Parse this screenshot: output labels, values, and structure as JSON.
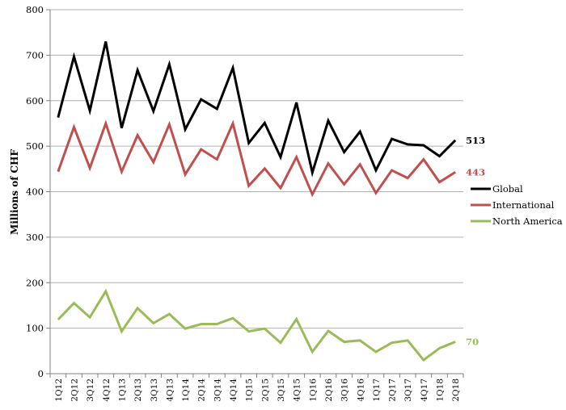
{
  "chart_data": {
    "type": "line",
    "title": "",
    "xlabel": "",
    "ylabel": "Millions of CHF",
    "ylim": [
      0,
      800
    ],
    "yticks": [
      0,
      100,
      200,
      300,
      400,
      500,
      600,
      700,
      800
    ],
    "grid": "horizontal",
    "legend_position": "right",
    "categories": [
      "1Q12",
      "2Q12",
      "3Q12",
      "4Q12",
      "1Q13",
      "2Q13",
      "3Q13",
      "4Q13",
      "1Q14",
      "2Q14",
      "3Q14",
      "4Q14",
      "1Q15",
      "2Q15",
      "3Q15",
      "4Q15",
      "1Q16",
      "2Q16",
      "3Q16",
      "4Q16",
      "1Q17",
      "2Q17",
      "3Q17",
      "4Q17",
      "1Q18",
      "2Q18"
    ],
    "series": [
      {
        "name": "Global",
        "color": "#000000",
        "values": [
          563,
          697,
          578,
          730,
          540,
          667,
          577,
          680,
          537,
          603,
          582,
          672,
          507,
          551,
          476,
          596,
          442,
          556,
          487,
          532,
          447,
          516,
          504,
          502,
          478,
          513
        ],
        "end_label": "513"
      },
      {
        "name": "International",
        "color": "#c0504d",
        "values": [
          444,
          542,
          452,
          550,
          444,
          524,
          465,
          548,
          438,
          493,
          471,
          550,
          413,
          451,
          408,
          476,
          394,
          462,
          416,
          460,
          397,
          447,
          430,
          471,
          421,
          443
        ],
        "end_label": "443"
      },
      {
        "name": "North America",
        "color": "#9bbb59",
        "values": [
          119,
          155,
          124,
          181,
          93,
          144,
          111,
          131,
          99,
          109,
          109,
          122,
          93,
          99,
          68,
          120,
          48,
          94,
          70,
          73,
          48,
          68,
          73,
          30,
          56,
          70
        ],
        "end_label": "70"
      }
    ]
  }
}
